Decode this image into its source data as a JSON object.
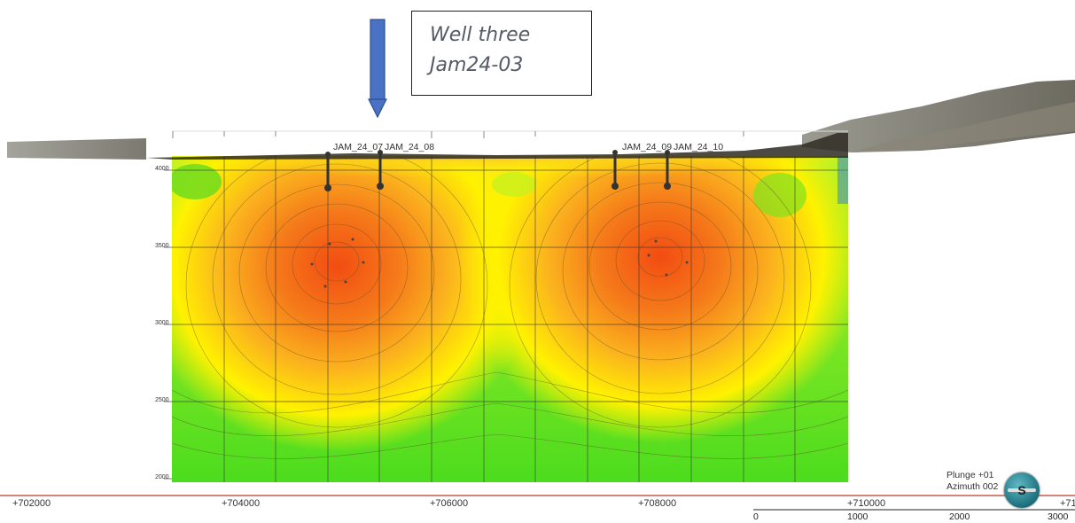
{
  "callout": {
    "line1": "Well three",
    "line2": "Jam24-03"
  },
  "wells": [
    {
      "id": "w1",
      "label": "JAM_24_07"
    },
    {
      "id": "w2",
      "label": "JAM_24_08"
    },
    {
      "id": "w3",
      "label": "JAM_24_09"
    },
    {
      "id": "w4",
      "label": "JAM_24_10"
    }
  ],
  "depth_axis": [
    "4000",
    "3500",
    "3000",
    "2500",
    "2000"
  ],
  "easting_axis": [
    "+702000",
    "+704000",
    "+706000",
    "+708000",
    "+710000",
    "+71"
  ],
  "scale_bar": [
    "0",
    "1000",
    "2000",
    "3000"
  ],
  "view": {
    "plunge": "Plunge +01",
    "azimuth": "Azimuth 002",
    "compass_letter": "S"
  },
  "colors": {
    "arrow": "#4a72c4",
    "high": "#f25a14",
    "mid": "#ffe400",
    "low": "#5ee41c",
    "axis_line": "#c0392b"
  }
}
